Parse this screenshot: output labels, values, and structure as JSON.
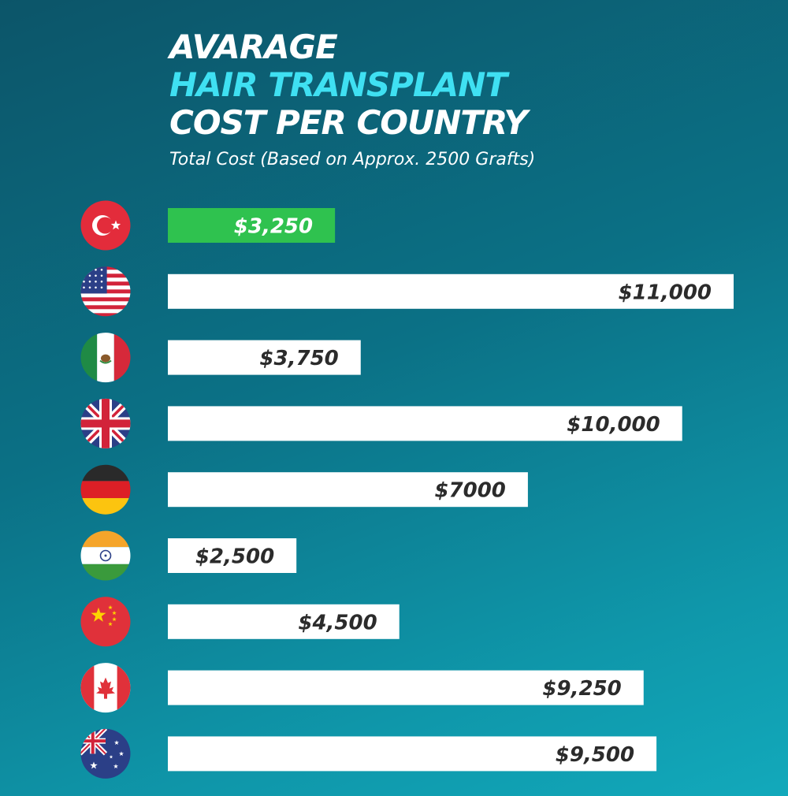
{
  "title": {
    "line1": "AVARAGE",
    "line2": "HAIR TRANSPLANT",
    "line3": "COST PER COUNTRY"
  },
  "subtitle": "Total Cost (Based on Approx. 2500 Grafts)",
  "colors": {
    "highlight_bar": "#2fc24f",
    "bar": "#ffffff",
    "label_dark": "#2b2b2b",
    "label_light": "#ffffff",
    "title_accent": "#3fe0f2"
  },
  "chart_data": {
    "type": "bar",
    "orientation": "horizontal",
    "categories": [
      "turkey-flag",
      "usa-flag",
      "mexico-flag",
      "uk-flag",
      "germany-flag",
      "india-flag",
      "china-flag",
      "canada-flag",
      "australia-flag"
    ],
    "values": [
      3250,
      11000,
      3750,
      10000,
      7000,
      2500,
      4500,
      9250,
      9500
    ],
    "labels": [
      "$3,250",
      "$11,000",
      "$3,750",
      "$10,000",
      "$7000",
      "$2,500",
      "$4,500",
      "$9,250",
      "$9,500"
    ],
    "highlight_index": 0,
    "xlim": [
      0,
      11000
    ],
    "grid": false,
    "legend": "none"
  }
}
